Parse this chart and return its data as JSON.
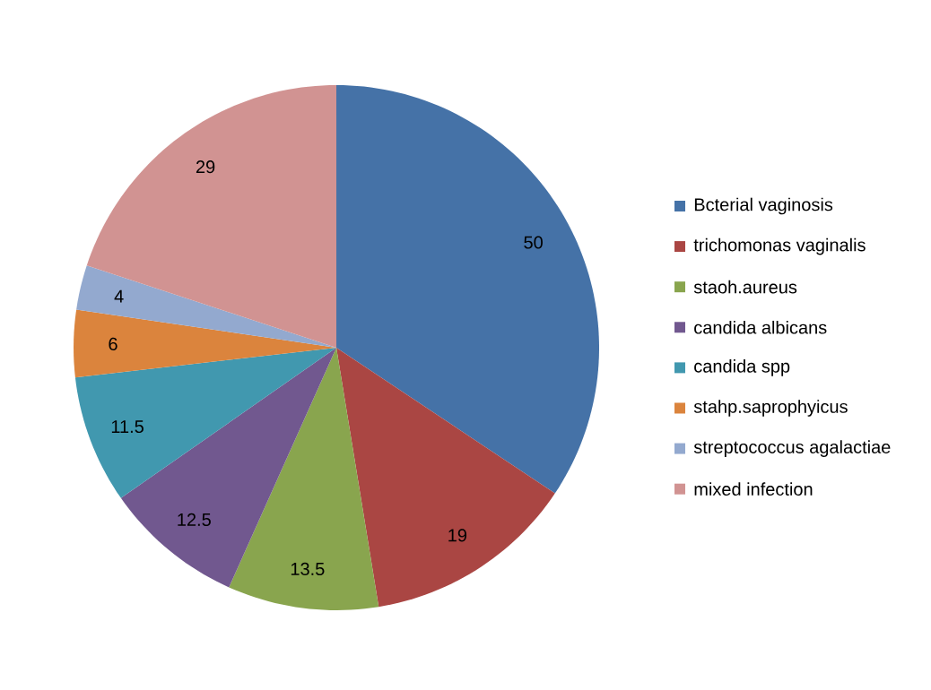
{
  "chart_data": {
    "type": "pie",
    "categories": [
      "Bcterial vaginosis",
      "trichomonas vaginalis",
      "staoh.aureus",
      "candida albicans",
      "candida spp",
      "stahp.saprophyicus",
      "streptococcus agalactiae",
      "mixed infection"
    ],
    "values": [
      50,
      19,
      13.5,
      12.5,
      11.5,
      6,
      4,
      29
    ],
    "colors": [
      "#4572a7",
      "#aa4643",
      "#89a54e",
      "#71588f",
      "#4198af",
      "#db843d",
      "#93a9cf",
      "#d19392"
    ],
    "data_labels": true,
    "legend": "right"
  }
}
